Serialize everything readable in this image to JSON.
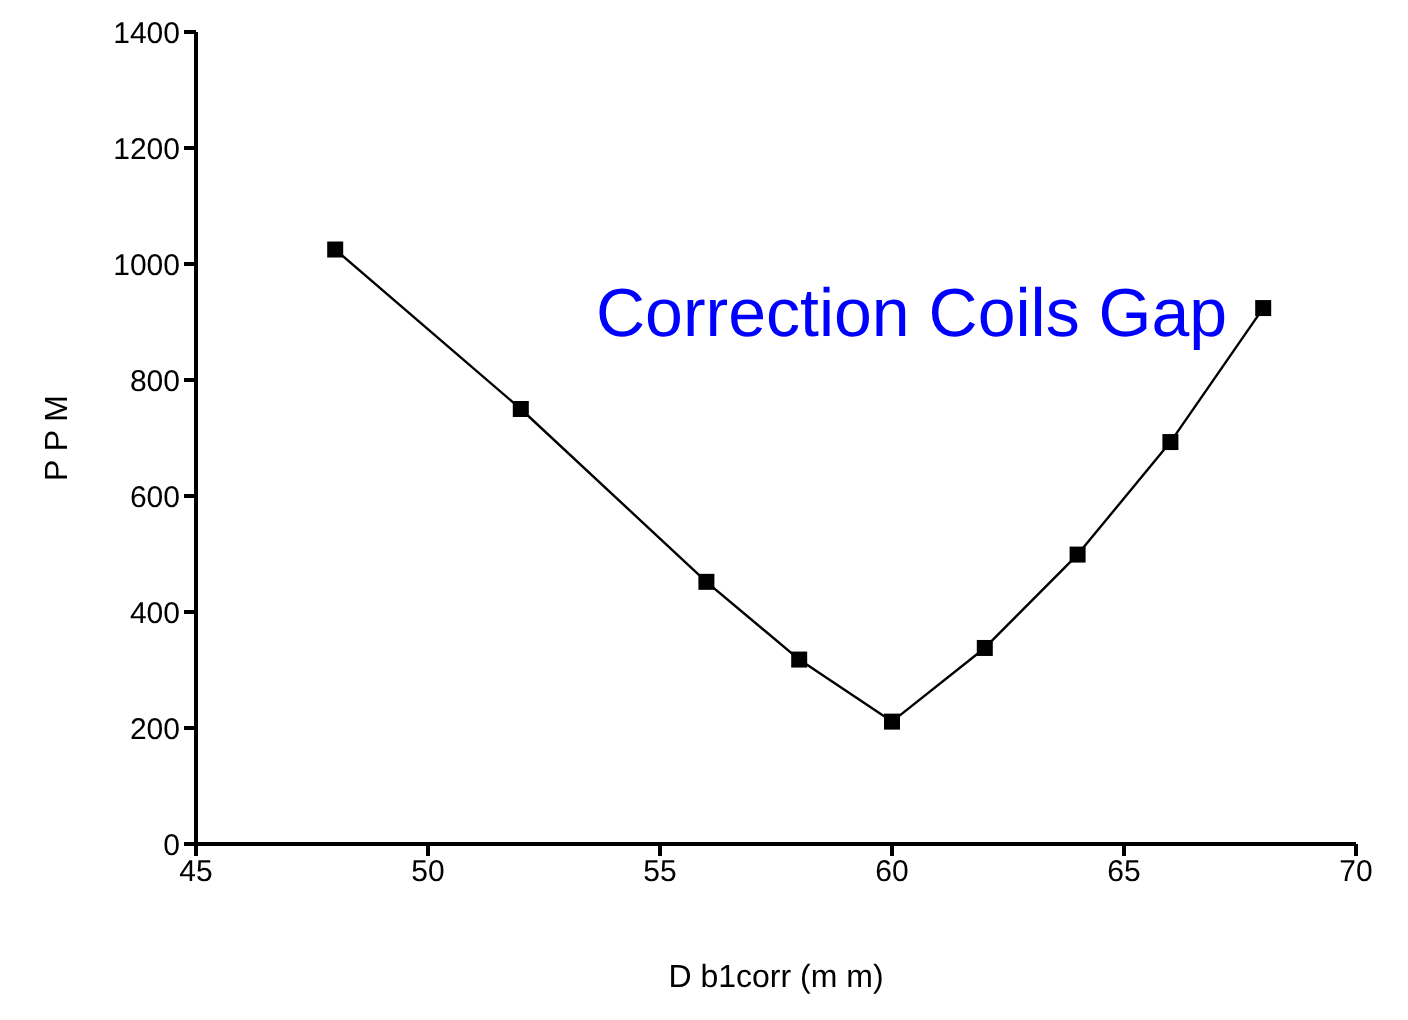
{
  "chart_data": {
    "type": "line",
    "xlabel": "D b1corr (m m)",
    "ylabel": "P P M",
    "x": [
      48,
      52,
      56,
      58,
      60,
      62,
      64,
      66,
      68
    ],
    "series": [
      {
        "color": "#000000",
        "values": [
          1025,
          750,
          452,
          318,
          211,
          338,
          499,
          693,
          924
        ]
      }
    ],
    "xlim": [
      45,
      70
    ],
    "xticks": [
      45,
      50,
      55,
      60,
      65,
      70
    ],
    "ylim": [
      0,
      1400
    ],
    "yticks": [
      0,
      200,
      400,
      600,
      800,
      1000,
      1200,
      1400
    ],
    "marker": "square",
    "line_style": "solid",
    "annotations": [
      "Correction Coils Gap"
    ]
  }
}
